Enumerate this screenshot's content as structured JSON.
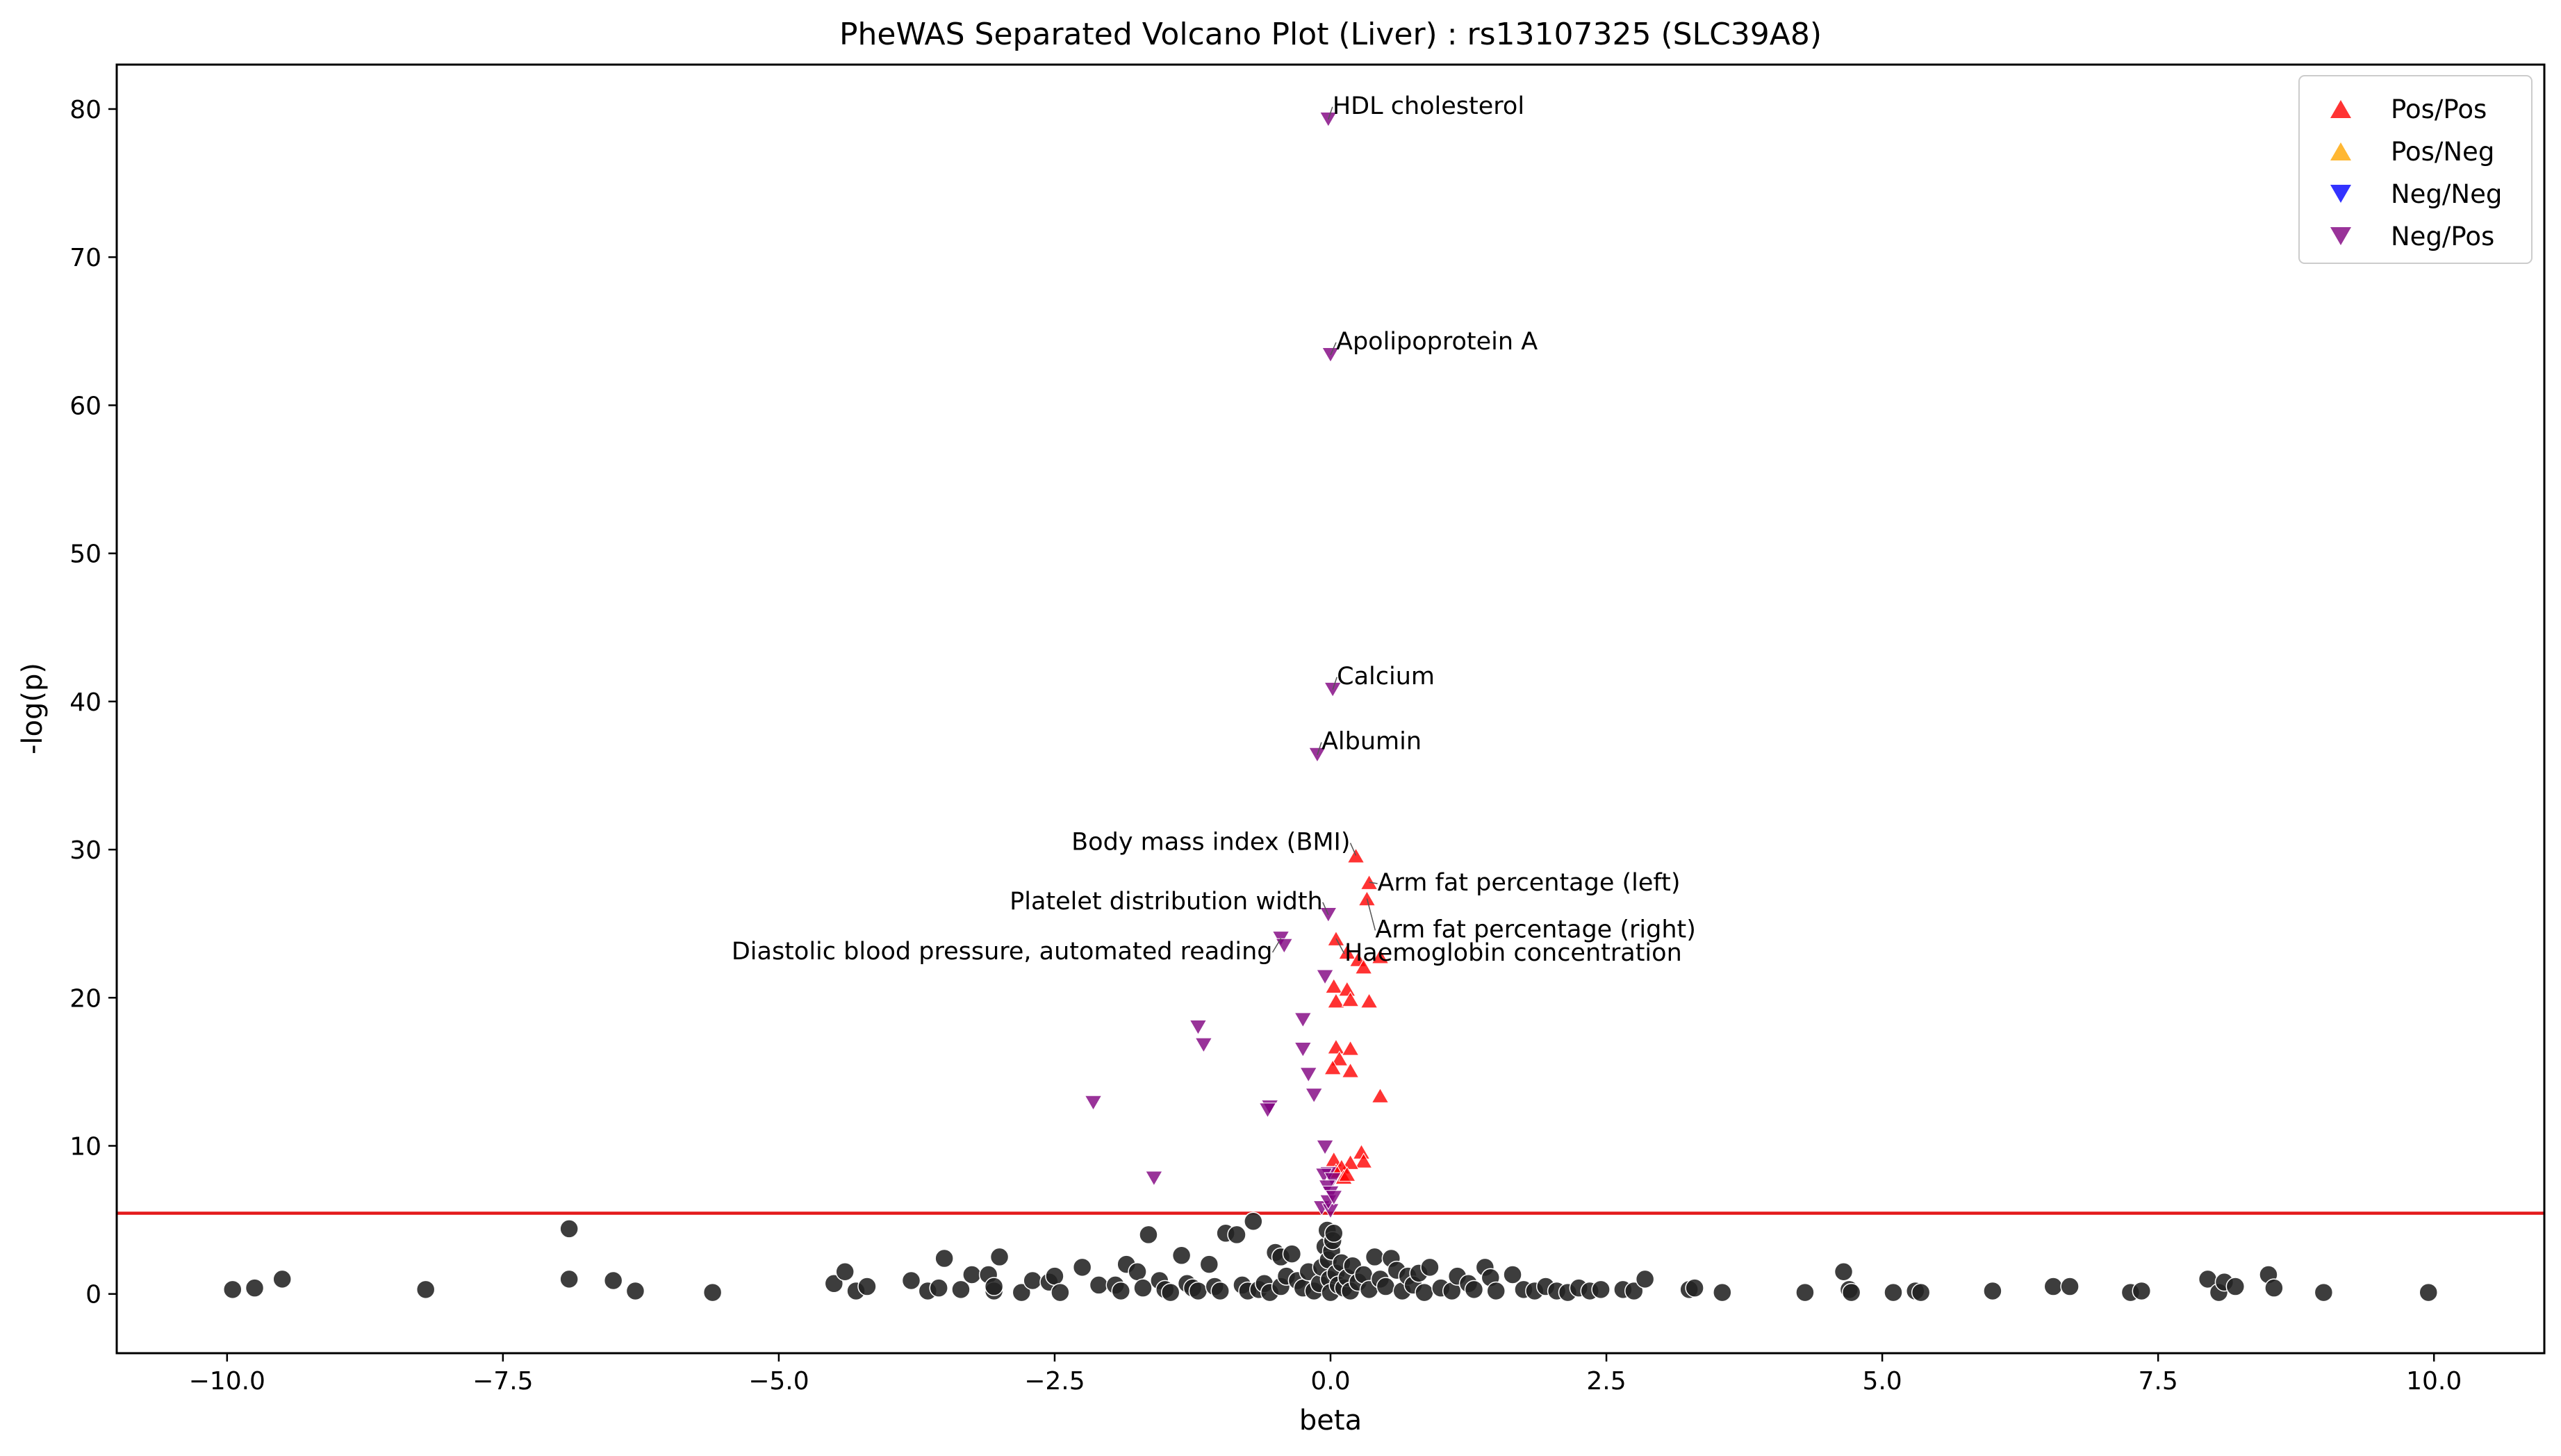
{
  "chart_data": {
    "type": "scatter",
    "title": "PheWAS Separated Volcano Plot (Liver) : rs13107325 (SLC39A8)",
    "xlabel": "beta",
    "ylabel": "-log(p)",
    "xlim": [
      -11.0,
      11.0
    ],
    "ylim": [
      -4.0,
      83.0
    ],
    "x_ticks": [
      -10.0,
      -7.5,
      -5.0,
      -2.5,
      0.0,
      2.5,
      5.0,
      7.5,
      10.0
    ],
    "x_tick_labels": [
      "−10.0",
      "−7.5",
      "−5.0",
      "−2.5",
      "0.0",
      "2.5",
      "5.0",
      "7.5",
      "10.0"
    ],
    "y_ticks": [
      0,
      10,
      20,
      30,
      40,
      50,
      60,
      70,
      80
    ],
    "y_tick_labels": [
      "0",
      "10",
      "20",
      "30",
      "40",
      "50",
      "60",
      "70",
      "80"
    ],
    "grid": false,
    "legend_position": "top-right",
    "threshold_line": {
      "y": 5.45,
      "color": "#e41a1c"
    },
    "series": [
      {
        "name": "Pos/Pos",
        "marker": "triangle-up",
        "color": "#ff0000",
        "points": [
          [
            0.23,
            29.6
          ],
          [
            0.35,
            27.8
          ],
          [
            0.33,
            26.7
          ],
          [
            0.05,
            24.0
          ],
          [
            0.15,
            23.1
          ],
          [
            0.25,
            22.6
          ],
          [
            0.3,
            22.1
          ],
          [
            0.45,
            22.8
          ],
          [
            0.03,
            20.8
          ],
          [
            0.15,
            20.6
          ],
          [
            0.05,
            19.8
          ],
          [
            0.18,
            19.9
          ],
          [
            0.35,
            19.8
          ],
          [
            0.05,
            16.7
          ],
          [
            0.18,
            16.6
          ],
          [
            0.08,
            15.9
          ],
          [
            0.02,
            15.3
          ],
          [
            0.18,
            15.1
          ],
          [
            0.45,
            13.4
          ],
          [
            0.28,
            9.6
          ],
          [
            0.03,
            9.1
          ],
          [
            0.3,
            9.0
          ],
          [
            0.18,
            8.9
          ],
          [
            0.1,
            8.6
          ],
          [
            0.05,
            8.3
          ],
          [
            0.12,
            7.9
          ],
          [
            0.15,
            8.1
          ]
        ]
      },
      {
        "name": "Pos/Neg",
        "marker": "triangle-up",
        "color": "#ffa500",
        "points": []
      },
      {
        "name": "Neg/Neg",
        "marker": "triangle-down",
        "color": "#0000ff",
        "points": []
      },
      {
        "name": "Neg/Pos",
        "marker": "triangle-down",
        "color": "#800080",
        "points": [
          [
            -0.02,
            79.3
          ],
          [
            0.0,
            63.4
          ],
          [
            0.02,
            40.8
          ],
          [
            -0.12,
            36.4
          ],
          [
            -0.02,
            25.6
          ],
          [
            -0.45,
            24.0
          ],
          [
            -0.42,
            23.5
          ],
          [
            -0.05,
            21.4
          ],
          [
            -0.25,
            18.5
          ],
          [
            -1.2,
            18.0
          ],
          [
            -1.15,
            16.8
          ],
          [
            -0.25,
            16.5
          ],
          [
            -0.2,
            14.8
          ],
          [
            -0.15,
            13.4
          ],
          [
            -2.15,
            12.9
          ],
          [
            -0.55,
            12.6
          ],
          [
            -0.57,
            12.4
          ],
          [
            -0.05,
            9.9
          ],
          [
            -0.02,
            8.1
          ],
          [
            -0.06,
            8.0
          ],
          [
            0.02,
            7.7
          ],
          [
            -1.6,
            7.8
          ],
          [
            -0.03,
            7.2
          ],
          [
            0.0,
            6.8
          ],
          [
            -0.08,
            5.8
          ],
          [
            0.0,
            5.6
          ],
          [
            -0.02,
            6.2
          ],
          [
            0.03,
            6.5
          ]
        ]
      },
      {
        "name": "",
        "marker": "circle",
        "color": "#222222",
        "points": [
          [
            -9.95,
            0.3
          ],
          [
            -9.75,
            0.4
          ],
          [
            -9.5,
            1.0
          ],
          [
            -8.2,
            0.3
          ],
          [
            -6.9,
            4.4
          ],
          [
            -6.9,
            1.0
          ],
          [
            -6.5,
            0.9
          ],
          [
            -6.3,
            0.2
          ],
          [
            -5.6,
            0.1
          ],
          [
            -4.5,
            0.7
          ],
          [
            -4.4,
            1.5
          ],
          [
            -4.3,
            0.2
          ],
          [
            -4.2,
            0.5
          ],
          [
            -3.8,
            0.9
          ],
          [
            -3.65,
            0.2
          ],
          [
            -3.55,
            0.4
          ],
          [
            -3.5,
            2.4
          ],
          [
            -3.35,
            0.3
          ],
          [
            -3.25,
            1.3
          ],
          [
            -3.1,
            1.3
          ],
          [
            -3.05,
            0.2
          ],
          [
            -3.05,
            0.5
          ],
          [
            -3.0,
            2.5
          ],
          [
            -2.8,
            0.1
          ],
          [
            -2.7,
            0.9
          ],
          [
            -2.55,
            0.8
          ],
          [
            -2.5,
            1.2
          ],
          [
            -2.45,
            0.1
          ],
          [
            -2.25,
            1.8
          ],
          [
            -2.1,
            0.6
          ],
          [
            -1.95,
            0.6
          ],
          [
            -1.9,
            0.2
          ],
          [
            -1.85,
            2.0
          ],
          [
            -1.75,
            1.5
          ],
          [
            -1.7,
            0.4
          ],
          [
            -1.65,
            4.0
          ],
          [
            -1.55,
            0.9
          ],
          [
            -1.5,
            0.3
          ],
          [
            -1.45,
            0.1
          ],
          [
            -1.35,
            2.6
          ],
          [
            -1.3,
            0.7
          ],
          [
            -1.25,
            0.4
          ],
          [
            -1.2,
            0.2
          ],
          [
            -1.1,
            2.0
          ],
          [
            -1.05,
            0.5
          ],
          [
            -1.0,
            0.2
          ],
          [
            -0.95,
            4.1
          ],
          [
            -0.85,
            4.0
          ],
          [
            -0.8,
            0.6
          ],
          [
            -0.75,
            0.2
          ],
          [
            -0.7,
            4.9
          ],
          [
            -0.65,
            0.3
          ],
          [
            -0.6,
            0.7
          ],
          [
            -0.55,
            0.1
          ],
          [
            -0.5,
            2.8
          ],
          [
            -0.45,
            0.5
          ],
          [
            -0.45,
            2.5
          ],
          [
            -0.4,
            1.2
          ],
          [
            -0.35,
            2.7
          ],
          [
            -0.3,
            0.9
          ],
          [
            -0.25,
            0.4
          ],
          [
            -0.2,
            1.5
          ],
          [
            -0.15,
            0.2
          ],
          [
            -0.1,
            0.7
          ],
          [
            -0.08,
            1.8
          ],
          [
            -0.05,
            3.2
          ],
          [
            -0.03,
            4.3
          ],
          [
            -0.02,
            2.3
          ],
          [
            -0.01,
            1.0
          ],
          [
            0.0,
            0.1
          ],
          [
            0.01,
            2.9
          ],
          [
            0.02,
            3.6
          ],
          [
            0.03,
            4.1
          ],
          [
            0.05,
            1.4
          ],
          [
            0.07,
            0.6
          ],
          [
            0.1,
            2.1
          ],
          [
            0.12,
            0.4
          ],
          [
            0.15,
            1.1
          ],
          [
            0.18,
            0.2
          ],
          [
            0.2,
            1.9
          ],
          [
            0.25,
            0.8
          ],
          [
            0.3,
            1.3
          ],
          [
            0.35,
            0.3
          ],
          [
            0.4,
            2.5
          ],
          [
            0.45,
            1.0
          ],
          [
            0.5,
            0.5
          ],
          [
            0.55,
            2.4
          ],
          [
            0.6,
            1.6
          ],
          [
            0.65,
            0.2
          ],
          [
            0.7,
            1.2
          ],
          [
            0.75,
            0.6
          ],
          [
            0.8,
            1.4
          ],
          [
            0.85,
            0.1
          ],
          [
            0.9,
            1.8
          ],
          [
            1.0,
            0.4
          ],
          [
            1.1,
            0.2
          ],
          [
            1.15,
            1.2
          ],
          [
            1.25,
            0.7
          ],
          [
            1.3,
            0.3
          ],
          [
            1.4,
            1.8
          ],
          [
            1.45,
            1.1
          ],
          [
            1.5,
            0.2
          ],
          [
            1.65,
            1.3
          ],
          [
            1.75,
            0.3
          ],
          [
            1.85,
            0.2
          ],
          [
            1.95,
            0.5
          ],
          [
            2.05,
            0.2
          ],
          [
            2.15,
            0.1
          ],
          [
            2.25,
            0.4
          ],
          [
            2.35,
            0.2
          ],
          [
            2.45,
            0.3
          ],
          [
            2.65,
            0.3
          ],
          [
            2.75,
            0.2
          ],
          [
            2.85,
            1.0
          ],
          [
            3.25,
            0.3
          ],
          [
            3.3,
            0.4
          ],
          [
            3.55,
            0.1
          ],
          [
            4.3,
            0.1
          ],
          [
            4.65,
            1.5
          ],
          [
            4.7,
            0.3
          ],
          [
            4.72,
            0.1
          ],
          [
            5.1,
            0.1
          ],
          [
            5.3,
            0.2
          ],
          [
            5.35,
            0.1
          ],
          [
            6.0,
            0.2
          ],
          [
            6.55,
            0.5
          ],
          [
            6.7,
            0.5
          ],
          [
            7.25,
            0.1
          ],
          [
            7.35,
            0.2
          ],
          [
            7.95,
            1.0
          ],
          [
            8.05,
            0.1
          ],
          [
            8.1,
            0.8
          ],
          [
            8.2,
            0.5
          ],
          [
            8.5,
            1.3
          ],
          [
            8.55,
            0.4
          ],
          [
            9.0,
            0.1
          ],
          [
            9.95,
            0.1
          ]
        ]
      }
    ],
    "annotations": [
      {
        "label": "HDL cholesterol",
        "x": -0.02,
        "y": 79.3
      },
      {
        "label": "Apolipoprotein A",
        "x": 0.0,
        "y": 63.4
      },
      {
        "label": "Calcium",
        "x": 0.02,
        "y": 40.8
      },
      {
        "label": "Albumin",
        "x": -0.12,
        "y": 36.4
      },
      {
        "label": "Body mass index (BMI)",
        "x": 0.23,
        "y": 29.6
      },
      {
        "label": "Arm fat percentage (left)",
        "x": 0.35,
        "y": 27.8
      },
      {
        "label": "Platelet distribution width",
        "x": -0.02,
        "y": 25.6
      },
      {
        "label": "Arm fat percentage (right)",
        "x": 0.33,
        "y": 26.7
      },
      {
        "label": "Diastolic blood pressure, automated reading",
        "x": -0.45,
        "y": 24.0
      },
      {
        "label": "Haemoglobin concentration",
        "x": 0.05,
        "y": 24.0
      }
    ]
  }
}
